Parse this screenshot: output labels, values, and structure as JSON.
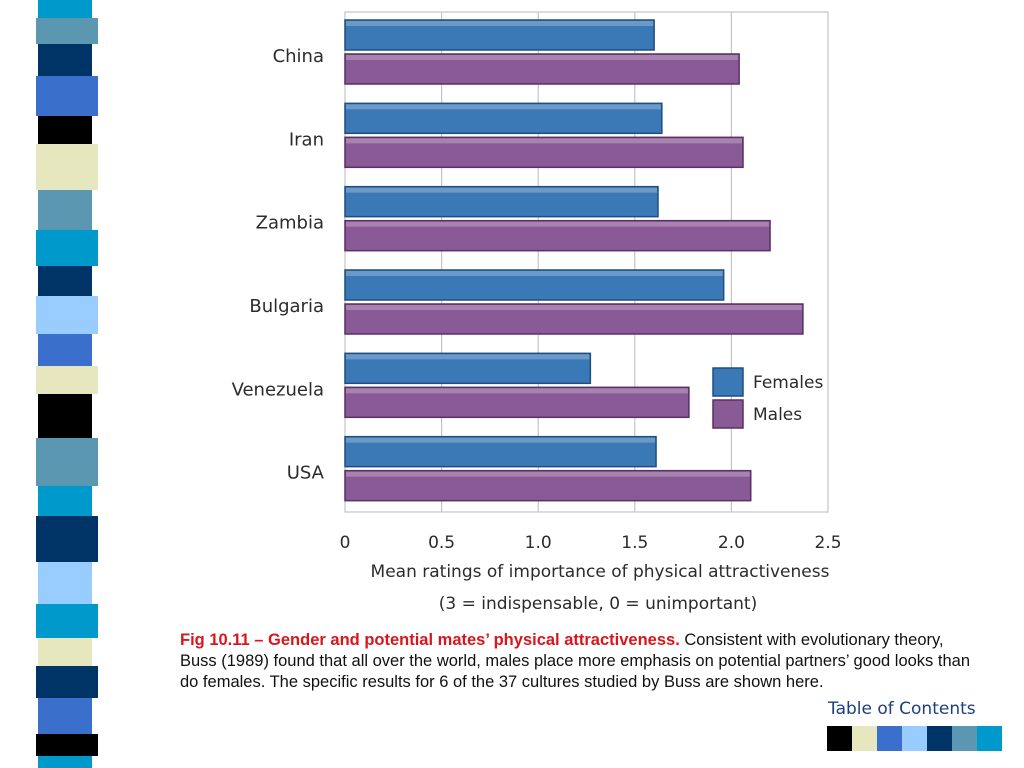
{
  "slide": {
    "caption_title": "Fig 10.11 – Gender and potential mates’ physical attractiveness.",
    "caption_body": " Consistent with evolutionary theory, Buss (1989) found that all over the world, males place more emphasis on potential partners’ good looks than do females. The specific results for 6 of the 37 cultures studied by Buss are shown here.",
    "toc_label": "Table of Contents",
    "nav_block_colors": [
      "#000000",
      "#e6e6bf",
      "#3a6fcc",
      "#99ccff",
      "#003366",
      "#5b97b0",
      "#0099cc"
    ],
    "deco_colors": [
      "#0099cc",
      "#5b97b0",
      "#003366",
      "#3a6fcc",
      "#000000",
      "#e6e6bf",
      "#99ccff"
    ]
  },
  "chart_data": {
    "type": "bar",
    "orientation": "horizontal",
    "categories": [
      "China",
      "Iran",
      "Zambia",
      "Bulgaria",
      "Venezuela",
      "USA"
    ],
    "series": [
      {
        "name": "Females",
        "color": "#3b78b6",
        "values": [
          1.6,
          1.64,
          1.62,
          1.96,
          1.27,
          1.61
        ]
      },
      {
        "name": "Males",
        "color": "#8a5a96",
        "values": [
          2.04,
          2.06,
          2.2,
          2.37,
          1.78,
          2.1
        ]
      }
    ],
    "xlim": [
      0,
      2.5
    ],
    "xticks": [
      "0",
      "0.5",
      "1.0",
      "1.5",
      "2.0",
      "2.5"
    ],
    "xlabel": "Mean ratings of importance of physical attractiveness",
    "xlabel2": "(3 = indispensable, 0 = unimportant)",
    "grid": true,
    "legend": "right-middle"
  }
}
